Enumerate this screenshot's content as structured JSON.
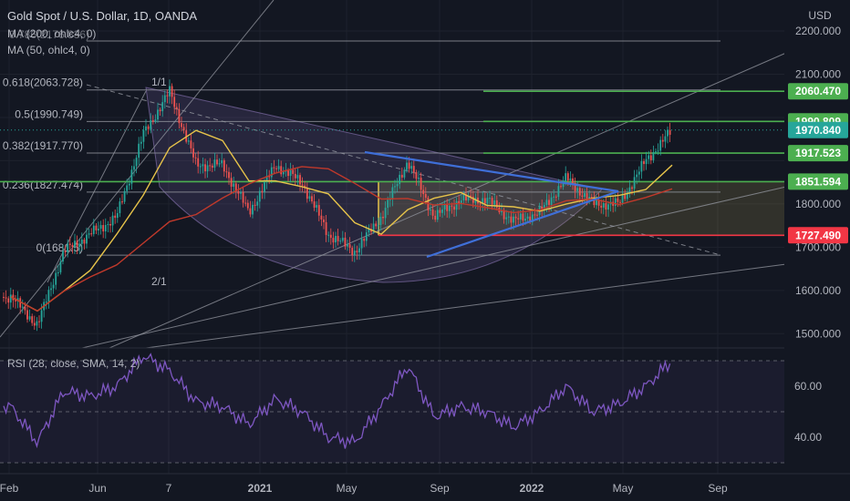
{
  "header": {
    "symbol_title": "Gold Spot / U.S. Dollar, 1D, OANDA",
    "indicator_ma200": "MA (200, ohlc4, 0)",
    "indicator_ma50": "MA (50, ohlc4, 0)",
    "indicator_overlap": "0.786(2176.836)",
    "rsi_label": "RSI (28, close, SMA, 14, 2)"
  },
  "colors": {
    "background": "#131722",
    "grid": "#1e222d",
    "text": "#b2b5be",
    "candle_up": "#26a69a",
    "candle_down": "#ef5350",
    "ma50": "#e6c34a",
    "ma200": "#c0392b",
    "green_level": "#4caf50",
    "red_level": "#f23645",
    "triangle": "#3f6fd8",
    "fib_line": "#9598a1",
    "rsi": "#7e57c2",
    "last_price": "#26a69a"
  },
  "price_axis": {
    "currency": "USD",
    "ticks": [
      "2200.000",
      "2100.000",
      "1800.000",
      "1700.000",
      "1600.000",
      "1500.000"
    ]
  },
  "time_axis": {
    "ticks": [
      "Feb",
      "Jun",
      "7",
      "2021",
      "May",
      "Sep",
      "2022",
      "May",
      "Sep"
    ]
  },
  "fib_labels": [
    {
      "label": "0.618(2063.728)",
      "level": 2063.728
    },
    {
      "label": "0.5(1990.749)",
      "level": 1990.749
    },
    {
      "label": "0.382(1917.770)",
      "level": 1917.77
    },
    {
      "label": "0.236(1827.474)",
      "level": 1827.474
    },
    {
      "label": "0(1681.5)",
      "level": 1681.5
    }
  ],
  "price_badges": [
    {
      "label": "2060.470",
      "value": 2060.47,
      "kind": "green"
    },
    {
      "label": "1990.809",
      "value": 1990.809,
      "kind": "green"
    },
    {
      "label": "1970.840",
      "value": 1970.84,
      "kind": "last"
    },
    {
      "label": "1917.523",
      "value": 1917.523,
      "kind": "green"
    },
    {
      "label": "1851.594",
      "value": 1851.594,
      "kind": "green"
    },
    {
      "label": "1727.490",
      "value": 1727.49,
      "kind": "red"
    }
  ],
  "fan_labels": [
    "1/1",
    "2/1"
  ],
  "rsi_axis": {
    "ticks": [
      "60.00",
      "40.00"
    ]
  },
  "chart_data": {
    "type": "candlestick",
    "title": "Gold Spot / U.S. Dollar, 1D, OANDA",
    "ylabel": "USD",
    "x_range": [
      "2020-02",
      "2022-09"
    ],
    "y_range": [
      1450,
      2250
    ],
    "close_series": [
      {
        "date": "2020-02",
        "value": 1585
      },
      {
        "date": "2020-03",
        "value": 1520
      },
      {
        "date": "2020-04",
        "value": 1690
      },
      {
        "date": "2020-05",
        "value": 1730
      },
      {
        "date": "2020-06",
        "value": 1770
      },
      {
        "date": "2020-07",
        "value": 1960
      },
      {
        "date": "2020-08",
        "value": 2060
      },
      {
        "date": "2020-09",
        "value": 1890
      },
      {
        "date": "2020-10",
        "value": 1890
      },
      {
        "date": "2020-11",
        "value": 1780
      },
      {
        "date": "2020-12",
        "value": 1890
      },
      {
        "date": "2021-01",
        "value": 1850
      },
      {
        "date": "2021-02",
        "value": 1730
      },
      {
        "date": "2021-03",
        "value": 1690
      },
      {
        "date": "2021-04",
        "value": 1770
      },
      {
        "date": "2021-05",
        "value": 1900
      },
      {
        "date": "2021-06",
        "value": 1770
      },
      {
        "date": "2021-07",
        "value": 1810
      },
      {
        "date": "2021-08",
        "value": 1810
      },
      {
        "date": "2021-09",
        "value": 1760
      },
      {
        "date": "2021-10",
        "value": 1780
      },
      {
        "date": "2021-11",
        "value": 1860
      },
      {
        "date": "2021-12",
        "value": 1800
      },
      {
        "date": "2022-01",
        "value": 1800
      },
      {
        "date": "2022-02",
        "value": 1900
      },
      {
        "date": "2022-03",
        "value": 1970
      }
    ],
    "horizontal_levels": [
      2060.47,
      1990.809,
      1917.523,
      1851.594,
      1727.49
    ],
    "last_price": 1970.84,
    "rsi": {
      "params": "28, close, SMA, 14, 2",
      "ylim": [
        25,
        80
      ],
      "values": [
        {
          "date": "2020-02",
          "value": 52
        },
        {
          "date": "2020-03",
          "value": 38
        },
        {
          "date": "2020-04",
          "value": 58
        },
        {
          "date": "2020-05",
          "value": 56
        },
        {
          "date": "2020-06",
          "value": 60
        },
        {
          "date": "2020-07",
          "value": 72
        },
        {
          "date": "2020-08",
          "value": 66
        },
        {
          "date": "2020-09",
          "value": 54
        },
        {
          "date": "2020-10",
          "value": 52
        },
        {
          "date": "2020-11",
          "value": 45
        },
        {
          "date": "2020-12",
          "value": 55
        },
        {
          "date": "2021-01",
          "value": 50
        },
        {
          "date": "2021-02",
          "value": 40
        },
        {
          "date": "2021-03",
          "value": 38
        },
        {
          "date": "2021-04",
          "value": 52
        },
        {
          "date": "2021-05",
          "value": 68
        },
        {
          "date": "2021-06",
          "value": 48
        },
        {
          "date": "2021-07",
          "value": 52
        },
        {
          "date": "2021-08",
          "value": 50
        },
        {
          "date": "2021-09",
          "value": 44
        },
        {
          "date": "2021-10",
          "value": 50
        },
        {
          "date": "2021-11",
          "value": 60
        },
        {
          "date": "2021-12",
          "value": 50
        },
        {
          "date": "2022-01",
          "value": 53
        },
        {
          "date": "2022-02",
          "value": 60
        },
        {
          "date": "2022-03",
          "value": 70
        }
      ]
    }
  }
}
